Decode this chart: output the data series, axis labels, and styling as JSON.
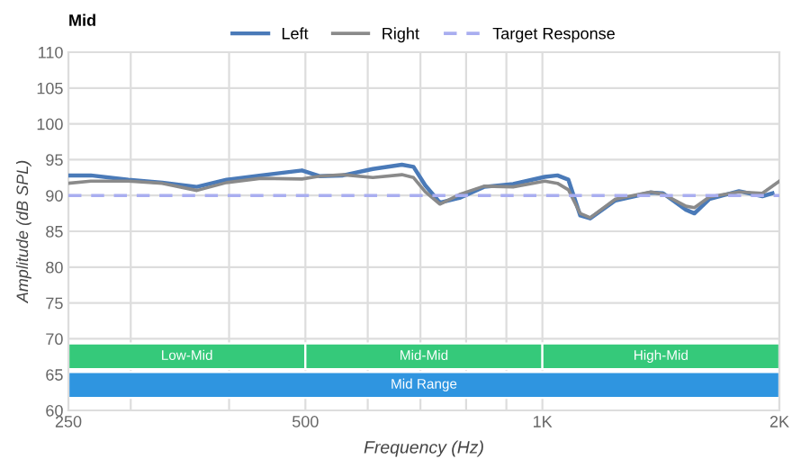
{
  "chart_data": {
    "type": "line",
    "title": "Mid",
    "xlabel": "Frequency (Hz)",
    "ylabel": "Amplitude (dB SPL)",
    "log": "x",
    "xlim": [
      250,
      2000
    ],
    "ylim": [
      60,
      110
    ],
    "xticks": [
      250,
      {
        "value": 300,
        "label": null
      },
      {
        "value": 400,
        "label": null
      },
      500,
      {
        "value": 600,
        "label": null
      },
      {
        "value": 700,
        "label": null
      },
      {
        "value": 800,
        "label": null
      },
      {
        "value": 900,
        "label": null
      },
      {
        "value": 1000,
        "label": "1K"
      },
      {
        "value": 2000,
        "label": "2K"
      }
    ],
    "yticks": [
      60,
      65,
      70,
      75,
      80,
      85,
      90,
      95,
      100,
      105,
      110
    ],
    "grid": true,
    "legend": "top",
    "marker": "none",
    "series": [
      {
        "name": "Left",
        "color": "#4a7ab8",
        "line_style": "solid",
        "x": [
          250,
          267,
          298,
          329,
          364,
          397,
          439,
          495,
          521,
          558,
          609,
          663,
          686,
          710,
          741,
          787,
          843,
          918,
          1007,
          1045,
          1079,
          1117,
          1150,
          1238,
          1373,
          1423,
          1522,
          1560,
          1630,
          1777,
          1903,
          1960
        ],
        "values": [
          92.8,
          92.8,
          92.2,
          91.8,
          91.2,
          92.2,
          92.8,
          93.5,
          92.7,
          92.8,
          93.7,
          94.3,
          94.0,
          91.4,
          89.0,
          89.7,
          91.2,
          91.6,
          92.6,
          92.8,
          92.2,
          87.2,
          86.8,
          89.3,
          90.4,
          90.3,
          88.0,
          87.5,
          89.5,
          90.6,
          89.9,
          90.3
        ]
      },
      {
        "name": "Right",
        "color": "#8a8a8a",
        "line_style": "solid",
        "x": [
          250,
          267,
          298,
          329,
          364,
          397,
          439,
          495,
          521,
          558,
          609,
          663,
          686,
          710,
          741,
          787,
          843,
          918,
          1007,
          1045,
          1079,
          1117,
          1150,
          1238,
          1373,
          1423,
          1522,
          1560,
          1630,
          1777,
          1903,
          2000
        ],
        "values": [
          91.7,
          92.0,
          92.0,
          91.7,
          90.7,
          91.8,
          92.4,
          92.3,
          92.7,
          92.9,
          92.5,
          92.9,
          92.5,
          90.5,
          88.8,
          90.2,
          91.3,
          91.2,
          92.0,
          91.7,
          90.8,
          87.5,
          86.9,
          89.5,
          90.5,
          90.2,
          88.5,
          88.3,
          89.8,
          90.5,
          90.3,
          92.0
        ]
      },
      {
        "name": "Target Response",
        "color": "#a9aef0",
        "line_style": "dashed",
        "x": [
          250,
          2000
        ],
        "values": [
          90,
          90
        ]
      }
    ],
    "bands": [
      {
        "axis": "x",
        "from": 250,
        "to": 500,
        "label": "Low-Mid",
        "color": "#35c97a"
      },
      {
        "axis": "x",
        "from": 500,
        "to": 1000,
        "label": "Mid-Mid",
        "color": "#35c97a"
      },
      {
        "axis": "x",
        "from": 1000,
        "to": 2000,
        "label": "High-Mid",
        "color": "#35c97a"
      },
      {
        "axis": "x",
        "from": 250,
        "to": 2000,
        "label": "Mid Range",
        "color": "#2f95e0"
      }
    ]
  }
}
